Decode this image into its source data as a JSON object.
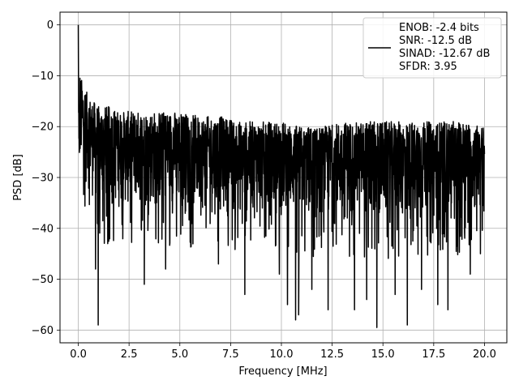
{
  "chart_data": {
    "type": "line",
    "title": "",
    "xlabel": "Frequency [MHz]",
    "ylabel": "PSD [dB]",
    "xlim": [
      -0.9,
      21.1
    ],
    "ylim": [
      -62.5,
      2.5
    ],
    "xticks": [
      0.0,
      2.5,
      5.0,
      7.5,
      10.0,
      12.5,
      15.0,
      17.5,
      20.0
    ],
    "xtick_labels": [
      "0.0",
      "2.5",
      "5.0",
      "7.5",
      "10.0",
      "12.5",
      "15.0",
      "17.5",
      "20.0"
    ],
    "yticks": [
      0,
      -10,
      -20,
      -30,
      -40,
      -50,
      -60
    ],
    "ytick_labels": [
      "0",
      "−10",
      "−20",
      "−30",
      "−40",
      "−50",
      "−60"
    ],
    "grid": true,
    "legend_position": "top-right",
    "series": [
      {
        "name": "ENOB: -2.4 bits\nSNR: -12.5 dB\nSINAD: -12.67 dB\nSFDR: 3.95",
        "legend_lines": [
          "ENOB: -2.4 bits",
          "SNR: -12.5 dB",
          "SINAD: -12.67 dB",
          "SFDR: 3.95"
        ],
        "color": "#000000",
        "x_range": [
          0,
          20
        ],
        "peak": {
          "x": 0.0,
          "y": 0.0
        },
        "upper_envelope": [
          [
            0.0,
            -4
          ],
          [
            0.1,
            -10
          ],
          [
            0.3,
            -12
          ],
          [
            0.5,
            -14
          ],
          [
            1.0,
            -16
          ],
          [
            1.5,
            -16
          ],
          [
            2.0,
            -17
          ],
          [
            3.0,
            -17
          ],
          [
            4.0,
            -17
          ],
          [
            5.0,
            -17
          ],
          [
            6.0,
            -18
          ],
          [
            7.0,
            -18
          ],
          [
            8.0,
            -19
          ],
          [
            9.0,
            -19
          ],
          [
            10.0,
            -19
          ],
          [
            11.0,
            -20
          ],
          [
            12.0,
            -20
          ],
          [
            13.0,
            -19
          ],
          [
            14.0,
            -19
          ],
          [
            15.0,
            -19
          ],
          [
            16.0,
            -19
          ],
          [
            17.0,
            -19
          ],
          [
            18.0,
            -19
          ],
          [
            19.0,
            -19
          ],
          [
            20.0,
            -20
          ]
        ],
        "typical_low": [
          [
            0.0,
            -30
          ],
          [
            1.0,
            -37
          ],
          [
            3.0,
            -37
          ],
          [
            5.0,
            -38
          ],
          [
            7.0,
            -38
          ],
          [
            10.0,
            -39
          ],
          [
            12.0,
            -40
          ],
          [
            15.0,
            -40
          ],
          [
            18.0,
            -40
          ],
          [
            20.0,
            -38
          ]
        ],
        "deep_dips": [
          {
            "x": 0.85,
            "y": -48
          },
          {
            "x": 0.98,
            "y": -59
          },
          {
            "x": 1.45,
            "y": -43
          },
          {
            "x": 3.25,
            "y": -51
          },
          {
            "x": 4.3,
            "y": -48
          },
          {
            "x": 6.9,
            "y": -47
          },
          {
            "x": 8.2,
            "y": -53
          },
          {
            "x": 9.9,
            "y": -49
          },
          {
            "x": 10.3,
            "y": -55
          },
          {
            "x": 10.7,
            "y": -58
          },
          {
            "x": 10.85,
            "y": -57
          },
          {
            "x": 11.5,
            "y": -52
          },
          {
            "x": 12.3,
            "y": -56
          },
          {
            "x": 13.6,
            "y": -56
          },
          {
            "x": 14.2,
            "y": -54
          },
          {
            "x": 14.7,
            "y": -59.5
          },
          {
            "x": 15.6,
            "y": -53
          },
          {
            "x": 16.2,
            "y": -59
          },
          {
            "x": 16.9,
            "y": -52
          },
          {
            "x": 17.7,
            "y": -55
          },
          {
            "x": 18.2,
            "y": -56
          },
          {
            "x": 19.3,
            "y": -49
          },
          {
            "x": 19.8,
            "y": -45
          }
        ]
      }
    ]
  }
}
